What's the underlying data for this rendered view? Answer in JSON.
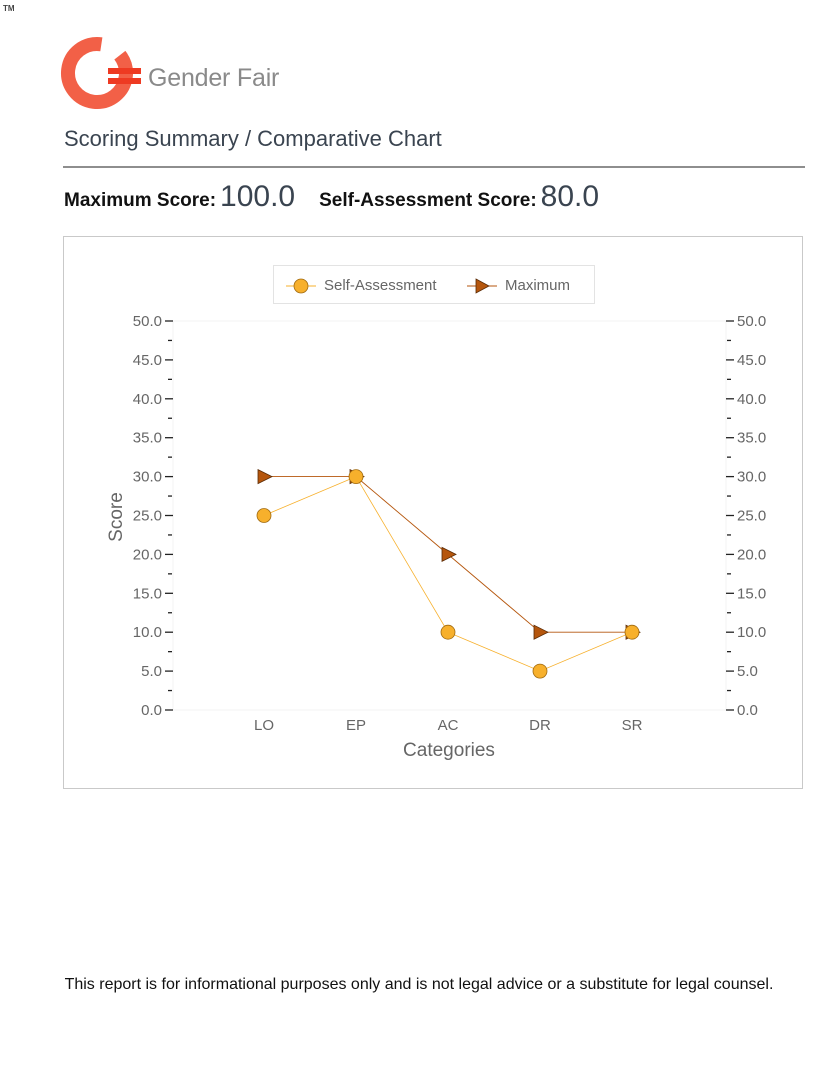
{
  "trademark": "TM",
  "brand": {
    "name": "Gender Fair",
    "colors": {
      "ring": "#f26047",
      "stripe": "#ee3a22",
      "text": "#8a8a8a"
    }
  },
  "report": {
    "title": "Scoring Summary / Comparative Chart",
    "maximum_label": "Maximum Score:",
    "maximum_value": "100.0",
    "self_label": "Self-Assessment Score:",
    "self_value": "80.0"
  },
  "chart_data": {
    "type": "line",
    "categories": [
      "LO",
      "EP",
      "AC",
      "DR",
      "SR"
    ],
    "series": [
      {
        "name": "Self-Assessment",
        "values": [
          25,
          30,
          10,
          5,
          10
        ],
        "marker": "circle",
        "color": "#f7b02c",
        "stroke": "#a06a10"
      },
      {
        "name": "Maximum",
        "values": [
          30,
          30,
          20,
          10,
          10
        ],
        "marker": "triangle-right",
        "color": "#b5560d",
        "stroke": "#5a2b06"
      }
    ],
    "xlabel": "Categories",
    "ylabel": "Score",
    "ylim": [
      0,
      50
    ],
    "major_ticks": [
      "0.0",
      "5.0",
      "10.0",
      "15.0",
      "20.0",
      "25.0",
      "30.0",
      "35.0",
      "40.0",
      "45.0",
      "50.0"
    ],
    "grid": false,
    "secondary_y_axis": true,
    "legend_position": "top-center"
  },
  "footer": {
    "disclaimer": "This report is for informational purposes only and is not legal advice or a substitute for legal counsel."
  }
}
